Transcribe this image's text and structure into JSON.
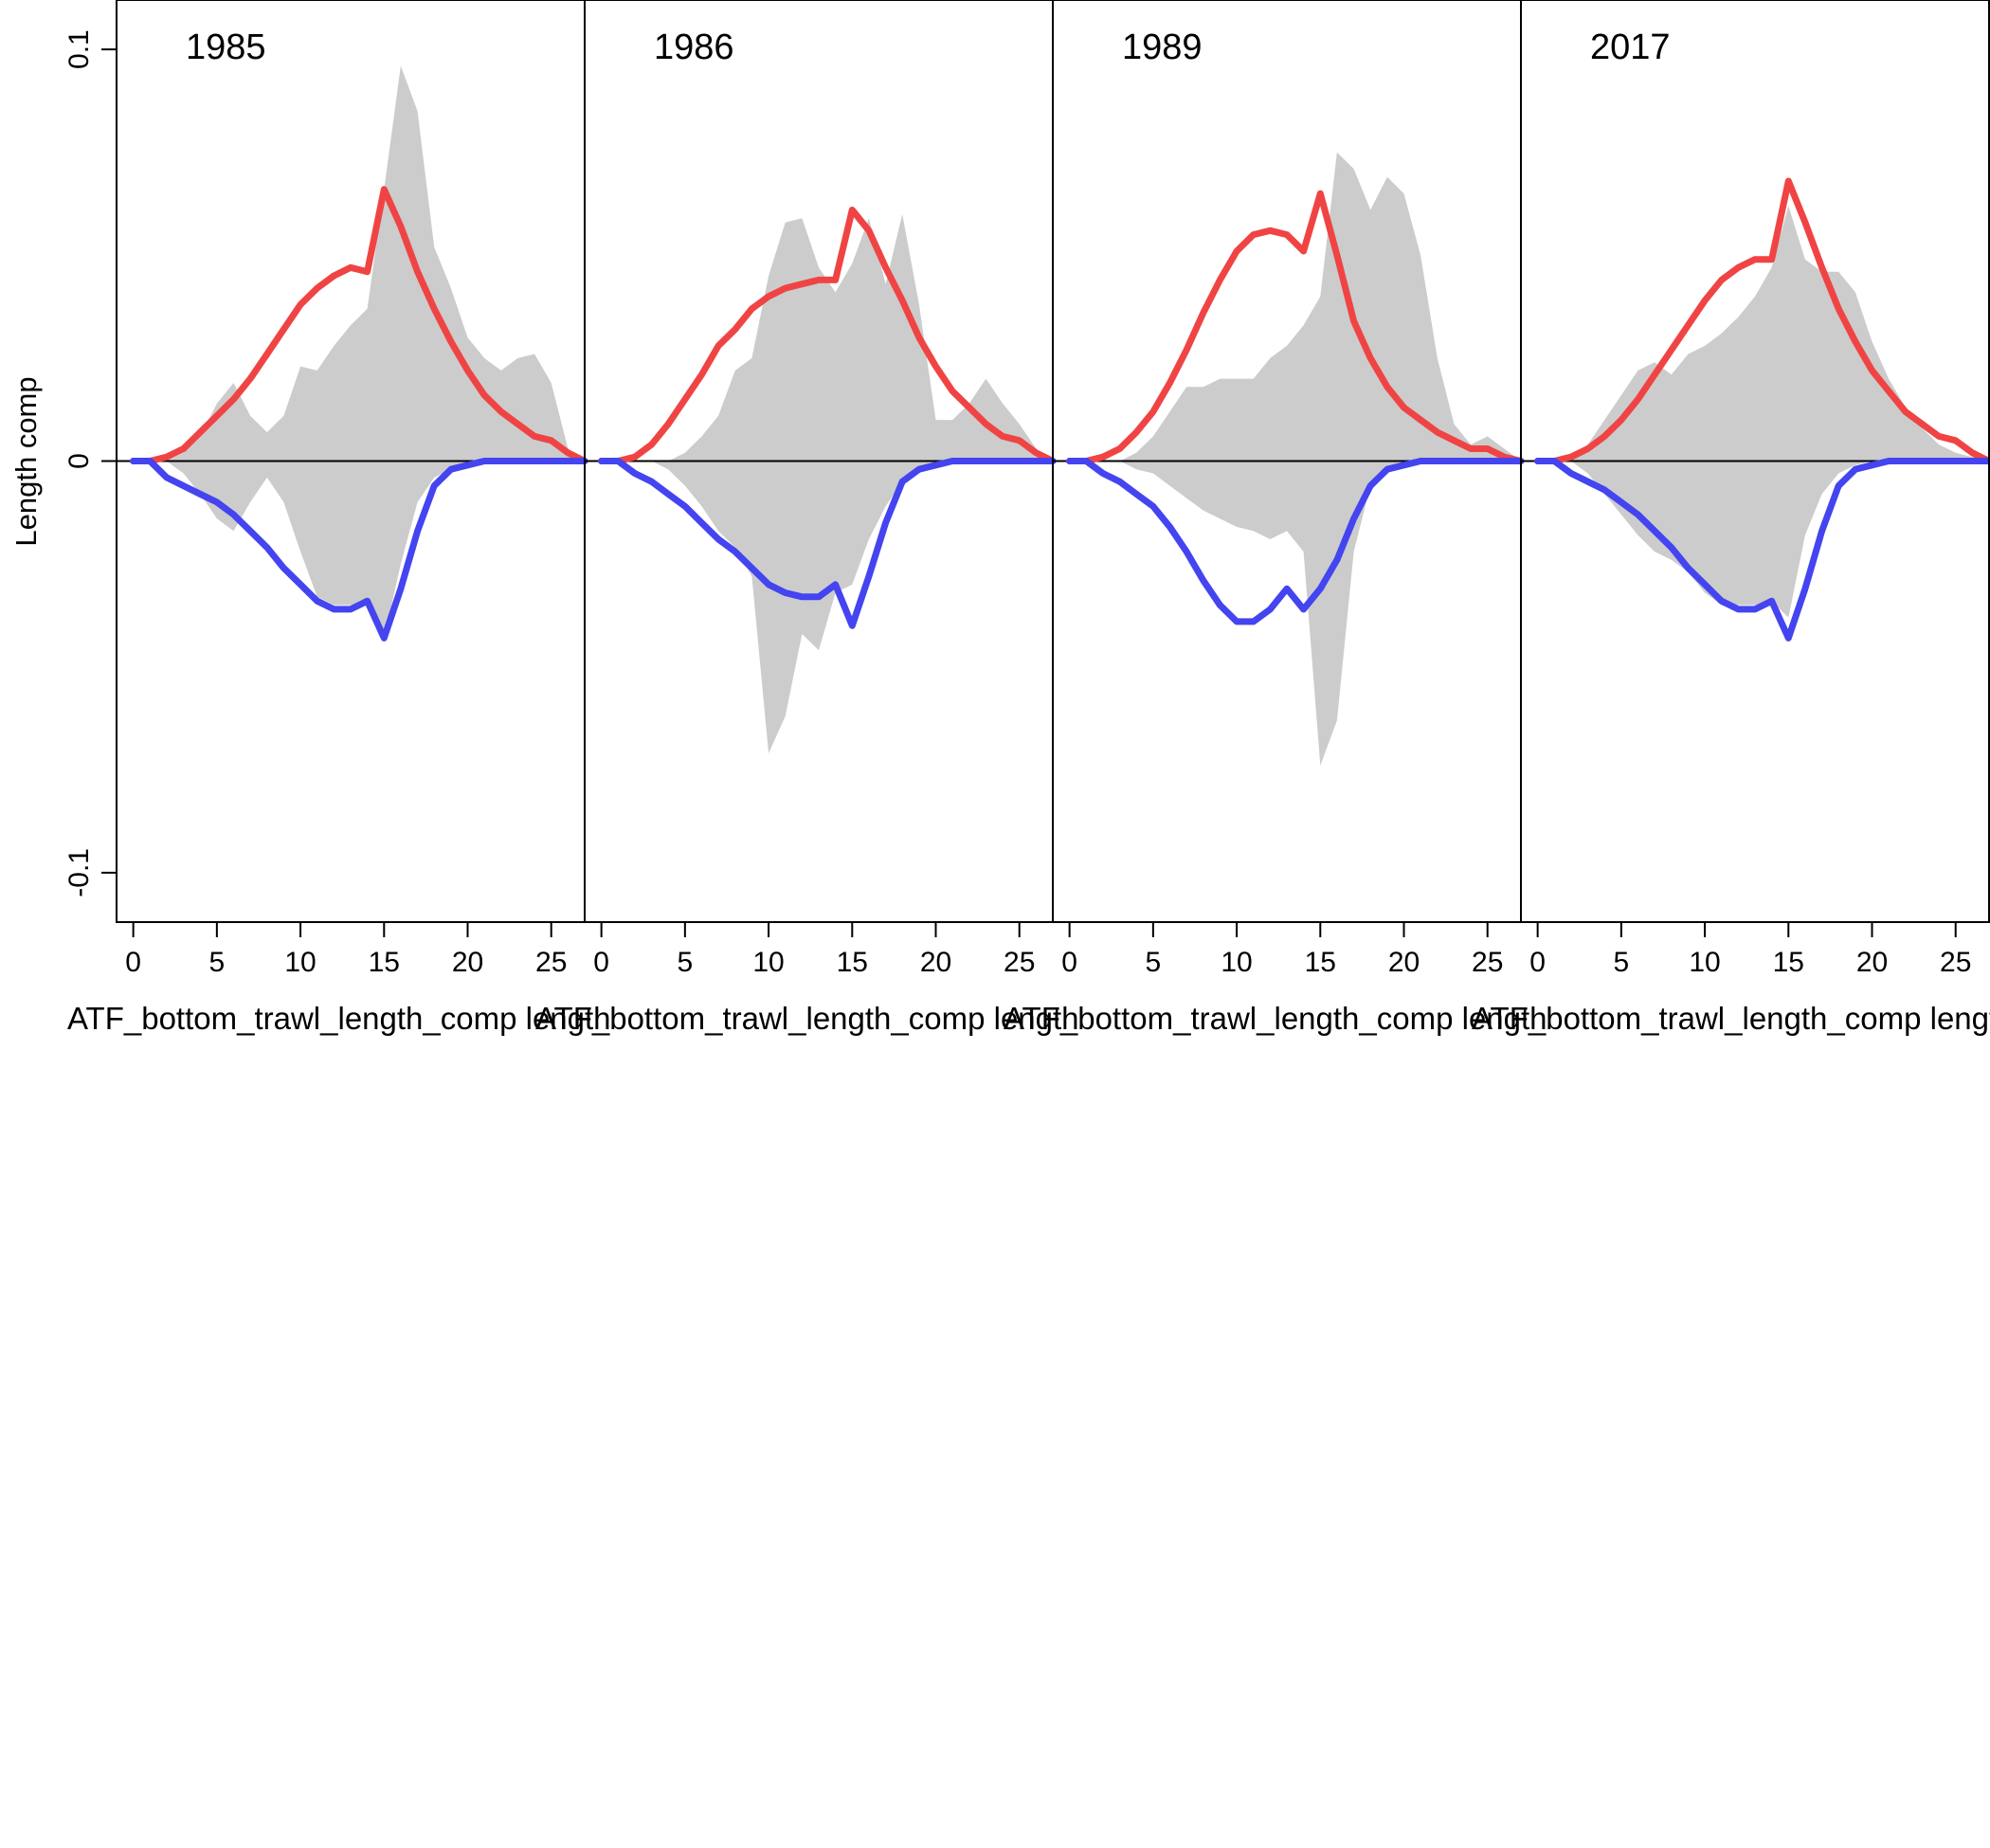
{
  "chart_data": {
    "type": "area",
    "ylabel": "Length comp",
    "xlabel": "ATF_bottom_trawl_length_comp length",
    "xlim": [
      -1,
      27
    ],
    "ylim": [
      -0.112,
      0.112
    ],
    "x_ticks": [
      0,
      5,
      10,
      15,
      20,
      25
    ],
    "y_ticks": [
      {
        "value": 0.1,
        "label": "0.1"
      },
      {
        "value": 0,
        "label": "0"
      },
      {
        "value": -0.1,
        "label": "-0.1"
      }
    ],
    "colors": {
      "observed": "#cccccc",
      "female": "#f04444",
      "male": "#4444f0"
    },
    "x": [
      0,
      1,
      2,
      3,
      4,
      5,
      6,
      7,
      8,
      9,
      10,
      11,
      12,
      13,
      14,
      15,
      16,
      17,
      18,
      19,
      20,
      21,
      22,
      23,
      24,
      25,
      26,
      27
    ],
    "panels": [
      {
        "year": "1985",
        "observed_female": [
          0,
          0,
          0,
          0.002,
          0.006,
          0.014,
          0.019,
          0.011,
          0.007,
          0.011,
          0.023,
          0.022,
          0.028,
          0.033,
          0.037,
          0.066,
          0.096,
          0.085,
          0.052,
          0.042,
          0.03,
          0.025,
          0.022,
          0.025,
          0.026,
          0.019,
          0.003,
          0
        ],
        "observed_male": [
          0,
          0,
          0,
          -0.003,
          -0.008,
          -0.014,
          -0.017,
          -0.01,
          -0.004,
          -0.01,
          -0.022,
          -0.033,
          -0.035,
          -0.035,
          -0.035,
          -0.043,
          -0.025,
          -0.01,
          -0.004,
          -0.002,
          -0.001,
          0,
          0,
          0,
          0,
          0,
          0,
          0
        ],
        "expected_female": [
          0,
          0,
          0.001,
          0.003,
          0.007,
          0.011,
          0.015,
          0.02,
          0.026,
          0.032,
          0.038,
          0.042,
          0.045,
          0.047,
          0.046,
          0.066,
          0.057,
          0.046,
          0.037,
          0.029,
          0.022,
          0.016,
          0.012,
          0.009,
          0.006,
          0.005,
          0.002,
          0
        ],
        "expected_male": [
          0,
          0,
          -0.004,
          -0.006,
          -0.008,
          -0.01,
          -0.013,
          -0.017,
          -0.021,
          -0.026,
          -0.03,
          -0.034,
          -0.036,
          -0.036,
          -0.034,
          -0.043,
          -0.031,
          -0.017,
          -0.006,
          -0.002,
          -0.001,
          0,
          0,
          0,
          0,
          0,
          0,
          0
        ]
      },
      {
        "year": "1986",
        "observed_female": [
          0,
          0,
          0,
          0,
          0,
          0.002,
          0.006,
          0.011,
          0.022,
          0.025,
          0.045,
          0.058,
          0.059,
          0.047,
          0.041,
          0.048,
          0.059,
          0.043,
          0.06,
          0.038,
          0.01,
          0.01,
          0.014,
          0.02,
          0.014,
          0.009,
          0.003,
          0
        ],
        "observed_male": [
          0,
          0,
          0,
          0,
          -0.002,
          -0.006,
          -0.011,
          -0.017,
          -0.021,
          -0.028,
          -0.071,
          -0.062,
          -0.042,
          -0.046,
          -0.032,
          -0.03,
          -0.019,
          -0.011,
          -0.005,
          -0.002,
          -0.001,
          0,
          0,
          0,
          0,
          0,
          0,
          0
        ],
        "expected_female": [
          0,
          0,
          0.001,
          0.004,
          0.009,
          0.015,
          0.021,
          0.028,
          0.032,
          0.037,
          0.04,
          0.042,
          0.043,
          0.044,
          0.044,
          0.061,
          0.056,
          0.047,
          0.039,
          0.03,
          0.023,
          0.017,
          0.013,
          0.009,
          0.006,
          0.005,
          0.002,
          0
        ],
        "expected_male": [
          0,
          0,
          -0.003,
          -0.005,
          -0.008,
          -0.011,
          -0.015,
          -0.019,
          -0.022,
          -0.026,
          -0.03,
          -0.032,
          -0.033,
          -0.033,
          -0.03,
          -0.04,
          -0.028,
          -0.015,
          -0.005,
          -0.002,
          -0.001,
          0,
          0,
          0,
          0,
          0,
          0,
          0
        ]
      },
      {
        "year": "1989",
        "observed_female": [
          0,
          0,
          0,
          0,
          0.002,
          0.006,
          0.012,
          0.018,
          0.018,
          0.02,
          0.02,
          0.02,
          0.025,
          0.028,
          0.033,
          0.04,
          0.075,
          0.071,
          0.061,
          0.069,
          0.065,
          0.05,
          0.025,
          0.009,
          0.004,
          0.006,
          0.003,
          0
        ],
        "observed_male": [
          0,
          0,
          0,
          0,
          -0.002,
          -0.003,
          -0.006,
          -0.009,
          -0.012,
          -0.014,
          -0.016,
          -0.017,
          -0.019,
          -0.017,
          -0.022,
          -0.074,
          -0.063,
          -0.022,
          -0.006,
          -0.002,
          -0.001,
          0,
          0,
          0,
          0,
          0,
          0,
          0
        ],
        "expected_female": [
          0,
          0,
          0.001,
          0.003,
          0.007,
          0.012,
          0.019,
          0.027,
          0.036,
          0.044,
          0.051,
          0.055,
          0.056,
          0.055,
          0.051,
          0.065,
          0.05,
          0.034,
          0.025,
          0.018,
          0.013,
          0.01,
          0.007,
          0.005,
          0.003,
          0.003,
          0.001,
          0
        ],
        "expected_male": [
          0,
          0,
          -0.003,
          -0.005,
          -0.008,
          -0.011,
          -0.016,
          -0.022,
          -0.029,
          -0.035,
          -0.039,
          -0.039,
          -0.036,
          -0.031,
          -0.036,
          -0.031,
          -0.024,
          -0.014,
          -0.006,
          -0.002,
          -0.001,
          0,
          0,
          0,
          0,
          0,
          0,
          0
        ]
      },
      {
        "year": "2017",
        "observed_female": [
          0,
          0,
          0,
          0.004,
          0.01,
          0.016,
          0.022,
          0.024,
          0.021,
          0.026,
          0.028,
          0.031,
          0.035,
          0.04,
          0.047,
          0.062,
          0.049,
          0.046,
          0.046,
          0.041,
          0.029,
          0.02,
          0.013,
          0.008,
          0.004,
          0.002,
          0.001,
          0
        ],
        "observed_male": [
          0,
          0,
          0,
          -0.003,
          -0.008,
          -0.013,
          -0.018,
          -0.022,
          -0.024,
          -0.027,
          -0.032,
          -0.035,
          -0.035,
          -0.035,
          -0.034,
          -0.038,
          -0.018,
          -0.008,
          -0.003,
          -0.001,
          0,
          0,
          0,
          0,
          0,
          0,
          0,
          0
        ],
        "expected_female": [
          0,
          0,
          0.001,
          0.003,
          0.006,
          0.01,
          0.015,
          0.021,
          0.027,
          0.033,
          0.039,
          0.044,
          0.047,
          0.049,
          0.049,
          0.068,
          0.058,
          0.047,
          0.037,
          0.029,
          0.022,
          0.017,
          0.012,
          0.009,
          0.006,
          0.005,
          0.002,
          0
        ],
        "expected_male": [
          0,
          0,
          -0.003,
          -0.005,
          -0.007,
          -0.01,
          -0.013,
          -0.017,
          -0.021,
          -0.026,
          -0.03,
          -0.034,
          -0.036,
          -0.036,
          -0.034,
          -0.043,
          -0.031,
          -0.017,
          -0.006,
          -0.002,
          -0.001,
          0,
          0,
          0,
          0,
          0,
          0,
          0
        ]
      }
    ]
  }
}
